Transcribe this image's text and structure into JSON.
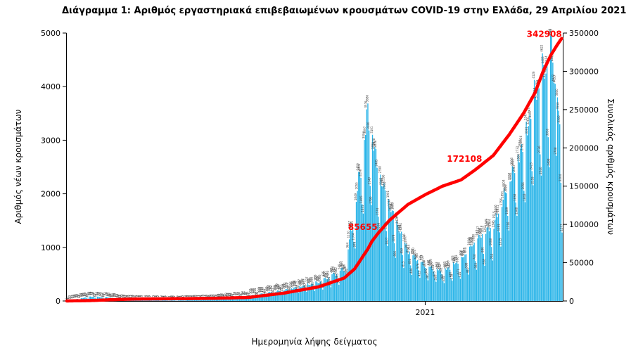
{
  "title": "Διάγραμμα 1: Αριθμός εργαστηριακά επιβεβαιωμένων κρουσμάτων COVID-19 στην Ελλάδα, 29 Απριλίου 2021",
  "axes": {
    "left_label": "Αριθμός νέων κρουσμάτων",
    "right_label": "Συνολικός αριθμός κρουσμάτων",
    "x_label": "Ημερομηνία λήψης δείγματος",
    "left_ticks": [
      0,
      1000,
      2000,
      3000,
      4000,
      5000
    ],
    "right_ticks": [
      0,
      50000,
      100000,
      150000,
      200000,
      250000,
      300000,
      350000
    ],
    "x_ticks": [
      {
        "label": "2021",
        "day": 310
      }
    ]
  },
  "chart_data": {
    "type": "bar",
    "title": "Διάγραμμα 1: Αριθμός εργαστηριακά επιβεβαιωμένων κρουσμάτων COVID-19 στην Ελλάδα, 29 Απριλίου 2021",
    "xlabel": "Ημερομηνία λήψης δείγματος",
    "ylabel_left": "Αριθμός νέων κρουσμάτων",
    "ylabel_right": "Συνολικός αριθμός κρουσμάτων",
    "x_unit": "day index, day 0 = 2020-02-26, day 428 = 2021-04-29 (sampling date)",
    "n_days": 429,
    "left_ylim": [
      0,
      5000
    ],
    "right_ylim": [
      0,
      350000
    ],
    "grid": false,
    "legend": "none",
    "bar_color": "#29b4e8",
    "line_color": "#ff0000",
    "annotation_color": "#ff0000",
    "series": [
      {
        "name": "daily_new_cases",
        "type": "bar",
        "axis": "left",
        "anchors": [
          [
            0,
            2
          ],
          [
            20,
            85
          ],
          [
            35,
            70
          ],
          [
            50,
            25
          ],
          [
            65,
            14
          ],
          [
            96,
            10
          ],
          [
            126,
            32
          ],
          [
            157,
            95
          ],
          [
            188,
            210
          ],
          [
            218,
            360
          ],
          [
            240,
            620
          ],
          [
            249,
            1750
          ],
          [
            256,
            2900
          ],
          [
            260,
            3565
          ],
          [
            264,
            3100
          ],
          [
            269,
            2450
          ],
          [
            279,
            1800
          ],
          [
            295,
            950
          ],
          [
            310,
            680
          ],
          [
            325,
            560
          ],
          [
            341,
            780
          ],
          [
            354,
            1150
          ],
          [
            369,
            1450
          ],
          [
            383,
            2350
          ],
          [
            395,
            3050
          ],
          [
            405,
            3950
          ],
          [
            412,
            4350
          ],
          [
            419,
            4809
          ],
          [
            424,
            3800
          ],
          [
            426,
            3300
          ],
          [
            427,
            2204
          ],
          [
            428,
            1277
          ]
        ]
      },
      {
        "name": "cumulative_cases",
        "type": "line",
        "axis": "right",
        "anchors": [
          [
            0,
            1
          ],
          [
            20,
            500
          ],
          [
            35,
            1415
          ],
          [
            50,
            2200
          ],
          [
            65,
            2626
          ],
          [
            96,
            2941
          ],
          [
            126,
            3432
          ],
          [
            157,
            4587
          ],
          [
            188,
            10317
          ],
          [
            218,
            18475
          ],
          [
            240,
            30000
          ],
          [
            249,
            42000
          ],
          [
            256,
            58000
          ],
          [
            260,
            67000
          ],
          [
            264,
            78000
          ],
          [
            269,
            88000
          ],
          [
            279,
            105271
          ],
          [
            295,
            126000
          ],
          [
            310,
            138850
          ],
          [
            325,
            150000
          ],
          [
            341,
            158163
          ],
          [
            354,
            172108
          ],
          [
            369,
            190235
          ],
          [
            383,
            218000
          ],
          [
            395,
            245000
          ],
          [
            405,
            272000
          ],
          [
            412,
            300000
          ],
          [
            419,
            322000
          ],
          [
            424,
            334000
          ],
          [
            427,
            340800
          ],
          [
            428,
            342908
          ]
        ]
      }
    ],
    "weekly_pattern": [
      1,
      0.99,
      1,
      0.97,
      0.95,
      0.68,
      0.55
    ],
    "annotations": [
      {
        "text": "85655",
        "day": 256,
        "value": 93000
      },
      {
        "text": "172108",
        "day": 344,
        "value": 182000
      },
      {
        "text": "342908",
        "day": 413,
        "value": 345000
      }
    ]
  }
}
